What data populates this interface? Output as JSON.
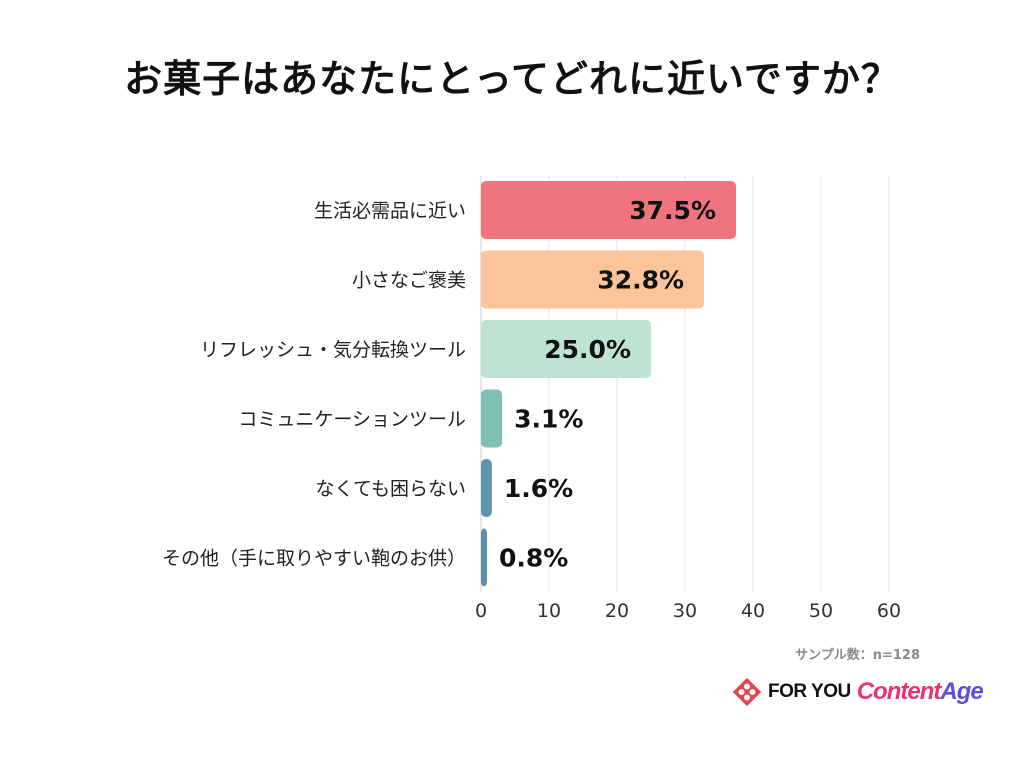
{
  "chart_data": {
    "type": "bar",
    "orientation": "horizontal",
    "title": "お菓子はあなたにとってどれに近いですか？",
    "categories": [
      "生活必需品に近い",
      "小さなご褒美",
      "リフレッシュ・気分転換ツール",
      "コミュニケーションツール",
      "なくても困らない",
      "その他（手に取りやすい鞄のお供）"
    ],
    "values": [
      37.5,
      32.8,
      25.0,
      3.1,
      1.6,
      0.8
    ],
    "value_labels": [
      "37.5%",
      "32.8%",
      "25.0%",
      "3.1%",
      "1.6%",
      "0.8%"
    ],
    "bar_colors": [
      "#f07480",
      "#fbc49a",
      "#bfe3d2",
      "#7fbfb6",
      "#5f93a9",
      "#5d8fa7"
    ],
    "xlim": [
      0,
      60
    ],
    "xticks": [
      0,
      10,
      20,
      30,
      40,
      50,
      60
    ],
    "grid": true
  },
  "sample_note": "サンプル数：n=128",
  "brand": {
    "foryou": "FOR YOU",
    "content": "Content",
    "age": "Age"
  }
}
